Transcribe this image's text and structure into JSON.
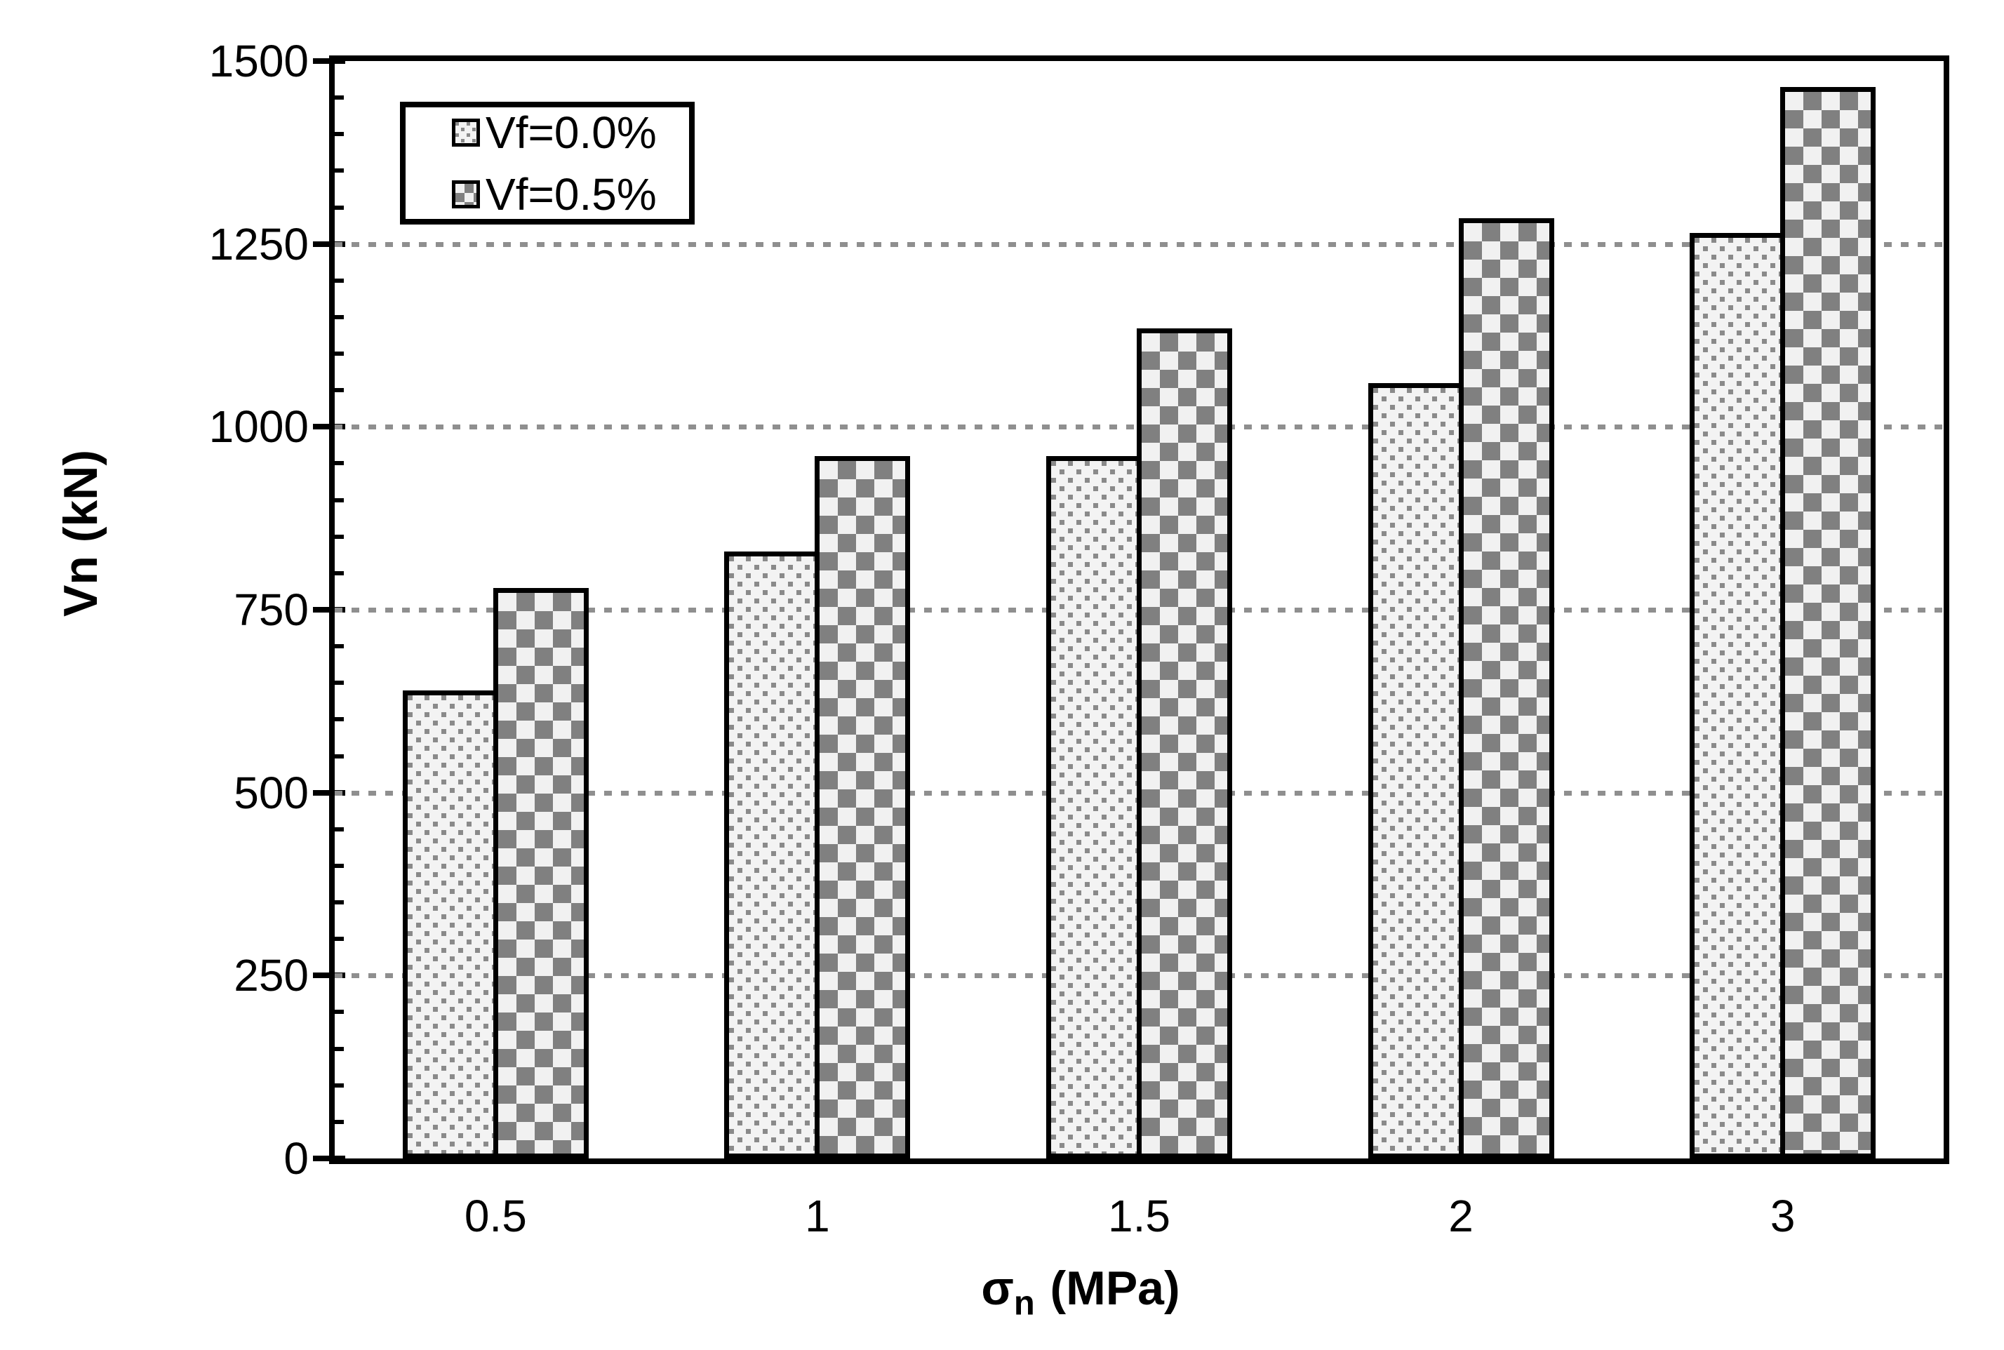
{
  "chart_data": {
    "type": "bar",
    "title": "",
    "categories": [
      "0.5",
      "1",
      "1.5",
      "2",
      "3"
    ],
    "series": [
      {
        "name": "Vf=0.0%",
        "pattern": "dots",
        "values": [
          640,
          830,
          960,
          1060,
          1265
        ]
      },
      {
        "name": "Vf=0.5%",
        "pattern": "checker",
        "values": [
          780,
          960,
          1135,
          1285,
          1465
        ]
      }
    ],
    "xlabel": "σn (MPa)",
    "xlabel_parts": {
      "symbol": "σ",
      "subscript": "n",
      "unit": "(MPa)"
    },
    "ylabel": "Vn (kN)",
    "ylim": [
      0,
      1500
    ],
    "ytick_step": 250,
    "ytick_minor_step": 50,
    "yticks": [
      "0",
      "250",
      "500",
      "750",
      "1000",
      "1250",
      "1500"
    ],
    "grid": {
      "horizontal": true,
      "style": "square-dotted",
      "color": "#8f8f8f",
      "levels": [
        250,
        500,
        750,
        1000,
        1250
      ]
    },
    "legend_position": "top-left-inside",
    "colors": {
      "frame": "#000000",
      "checker_gray": "#808080",
      "dot_gray": "#8a8a8a",
      "pattern_background": "#f2f2f2",
      "text": "#000000",
      "plot_background": "#ffffff"
    }
  }
}
